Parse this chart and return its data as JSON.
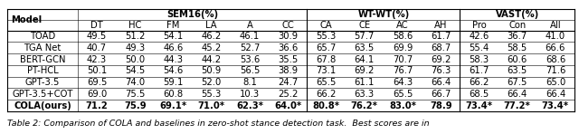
{
  "header_groups": [
    {
      "name": "SEM16(%)",
      "cols": [
        "DT",
        "HC",
        "FM",
        "LA",
        "A",
        "CC"
      ],
      "span": 6
    },
    {
      "name": "WT-WT(%)",
      "cols": [
        "CA",
        "CE",
        "AC",
        "AH"
      ],
      "span": 4
    },
    {
      "name": "VAST(%)",
      "cols": [
        "Pro",
        "Con",
        "All"
      ],
      "span": 3
    }
  ],
  "all_cols": [
    "DT",
    "HC",
    "FM",
    "LA",
    "A",
    "CC",
    "CA",
    "CE",
    "AC",
    "AH",
    "Pro",
    "Con",
    "All"
  ],
  "models": [
    "TOAD",
    "TGA Net",
    "BERT-GCN",
    "PT-HCL",
    "GPT-3.5",
    "GPT-3.5+COT",
    "COLA(ours)"
  ],
  "data": {
    "TOAD": [
      "49.5",
      "51.2",
      "54.1",
      "46.2",
      "46.1",
      "30.9",
      "55.3",
      "57.7",
      "58.6",
      "61.7",
      "42.6",
      "36.7",
      "41.0"
    ],
    "TGA Net": [
      "40.7",
      "49.3",
      "46.6",
      "45.2",
      "52.7",
      "36.6",
      "65.7",
      "63.5",
      "69.9",
      "68.7",
      "55.4",
      "58.5",
      "66.6"
    ],
    "BERT-GCN": [
      "42.3",
      "50.0",
      "44.3",
      "44.2",
      "53.6",
      "35.5",
      "67.8",
      "64.1",
      "70.7",
      "69.2",
      "58.3",
      "60.6",
      "68.6"
    ],
    "PT-HCL": [
      "50.1",
      "54.5",
      "54.6",
      "50.9",
      "56.5",
      "38.9",
      "73.1",
      "69.2",
      "76.7",
      "76.3",
      "61.7",
      "63.5",
      "71.6"
    ],
    "GPT-3.5": [
      "69.5",
      "74.0",
      "59.1",
      "52.0",
      "8.1",
      "24.7",
      "65.5",
      "61.1",
      "64.3",
      "66.4",
      "66.2",
      "67.5",
      "65.0"
    ],
    "GPT-3.5+COT": [
      "69.0",
      "75.5",
      "60.8",
      "55.3",
      "10.3",
      "25.2",
      "66.2",
      "63.3",
      "65.5",
      "66.7",
      "68.5",
      "66.4",
      "66.4"
    ],
    "COLA(ours)": [
      "71.2",
      "75.9",
      "69.1*",
      "71.0*",
      "62.3*",
      "64.0*",
      "80.8*",
      "76.2*",
      "83.0*",
      "78.9",
      "73.4*",
      "77.2*",
      "73.4*"
    ]
  },
  "bold_model": "COLA(ours)",
  "group_sep_cols": [
    6,
    10
  ],
  "caption": "Table 2: Comparison of COLA and baselines in zero-shot stance detection task.  Best scores are in",
  "font_size": 7.2,
  "caption_font_size": 6.8
}
